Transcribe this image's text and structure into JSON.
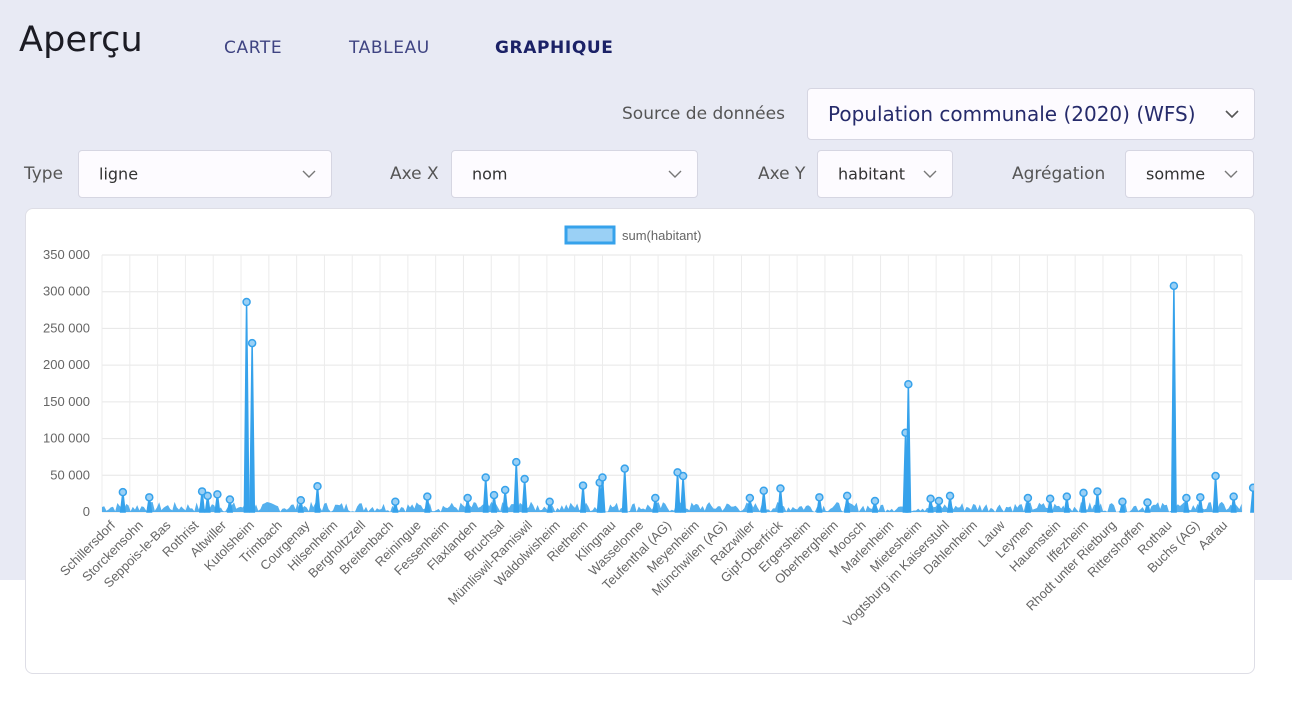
{
  "page": {
    "title": "Aperçu"
  },
  "tabs": [
    {
      "label": "CARTE",
      "active": false
    },
    {
      "label": "TABLEAU",
      "active": false
    },
    {
      "label": "GRAPHIQUE",
      "active": true
    }
  ],
  "controls": {
    "source": {
      "label": "Source de données",
      "value": "Population communale (2020) (WFS)"
    },
    "type": {
      "label": "Type",
      "value": "ligne"
    },
    "x_axis": {
      "label": "Axe X",
      "value": "nom"
    },
    "y_axis": {
      "label": "Axe Y",
      "value": "habitant"
    },
    "aggregation": {
      "label": "Agrégation",
      "value": "somme"
    }
  },
  "colors": {
    "series": "#36a2eb",
    "series_fill": "#9ad0f5",
    "accent": "#1b2166"
  },
  "icons": {
    "chevron": "chevron-down-icon"
  },
  "chart_data": {
    "type": "line",
    "legend": "sum(habitant)",
    "legend_position": "top",
    "grid": true,
    "ylim": [
      0,
      350000
    ],
    "y_ticks": [
      0,
      50000,
      100000,
      150000,
      200000,
      250000,
      300000,
      350000
    ],
    "y_tick_labels": [
      "0",
      "50 000",
      "100 000",
      "150 000",
      "200 000",
      "250 000",
      "300 000",
      "350 000"
    ],
    "x_tick_labels": [
      "Schillersdorf",
      "Storckensohn",
      "Seppois-le-Bas",
      "Rothrist",
      "Altwiller",
      "Kutolsheim",
      "Trimbach",
      "Courgenay",
      "Hilsenheim",
      "Bergholtzzell",
      "Breitenbach",
      "Reiningue",
      "Fessenheim",
      "Flaxlanden",
      "Bruchsal",
      "Mümliswil-Ramiswil",
      "Waldolwisheim",
      "Rietheim",
      "Klingnau",
      "Wasselonne",
      "Teufenthal (AG)",
      "Meyenheim",
      "Münchwilen (AG)",
      "Ratzwiller",
      "Gipf-Oberfrick",
      "Ergersheim",
      "Oberhergheim",
      "Moosch",
      "Marlenheim",
      "Mietesheim",
      "Vogtsburg im Kaiserstuhl",
      "Dahlenheim",
      "Lauw",
      "Leymen",
      "Hauenstein",
      "Iffezheim",
      "Rhodt unter Rietburg",
      "Rittershoffen",
      "Rothau",
      "Buchs (AG)",
      "Aarau"
    ],
    "peaks": [
      {
        "x": 0.25,
        "y": 27000
      },
      {
        "x": 1.2,
        "y": 20000
      },
      {
        "x": 3.1,
        "y": 28000
      },
      {
        "x": 3.3,
        "y": 22000
      },
      {
        "x": 3.65,
        "y": 24000
      },
      {
        "x": 4.1,
        "y": 17000
      },
      {
        "x": 4.7,
        "y": 286000
      },
      {
        "x": 4.9,
        "y": 230000
      },
      {
        "x": 6.65,
        "y": 16000
      },
      {
        "x": 7.25,
        "y": 35000
      },
      {
        "x": 10.05,
        "y": 14000
      },
      {
        "x": 11.2,
        "y": 21000
      },
      {
        "x": 12.65,
        "y": 19000
      },
      {
        "x": 13.3,
        "y": 47000
      },
      {
        "x": 13.6,
        "y": 23000
      },
      {
        "x": 14.0,
        "y": 30000
      },
      {
        "x": 14.4,
        "y": 68000
      },
      {
        "x": 14.7,
        "y": 45000
      },
      {
        "x": 15.6,
        "y": 14000
      },
      {
        "x": 16.8,
        "y": 36000
      },
      {
        "x": 17.4,
        "y": 40000
      },
      {
        "x": 17.5,
        "y": 47000
      },
      {
        "x": 18.3,
        "y": 59000
      },
      {
        "x": 19.4,
        "y": 19000
      },
      {
        "x": 20.2,
        "y": 54000
      },
      {
        "x": 20.4,
        "y": 49000
      },
      {
        "x": 22.8,
        "y": 19000
      },
      {
        "x": 23.3,
        "y": 29000
      },
      {
        "x": 23.9,
        "y": 32000
      },
      {
        "x": 25.3,
        "y": 20000
      },
      {
        "x": 26.3,
        "y": 22000
      },
      {
        "x": 27.3,
        "y": 15000
      },
      {
        "x": 28.4,
        "y": 108000
      },
      {
        "x": 28.5,
        "y": 174000
      },
      {
        "x": 29.3,
        "y": 18000
      },
      {
        "x": 29.6,
        "y": 15000
      },
      {
        "x": 30.0,
        "y": 22000
      },
      {
        "x": 32.8,
        "y": 19000
      },
      {
        "x": 33.6,
        "y": 18000
      },
      {
        "x": 34.2,
        "y": 21000
      },
      {
        "x": 34.8,
        "y": 26000
      },
      {
        "x": 35.3,
        "y": 28000
      },
      {
        "x": 36.2,
        "y": 14000
      },
      {
        "x": 37.1,
        "y": 13000
      },
      {
        "x": 38.05,
        "y": 308000
      },
      {
        "x": 38.5,
        "y": 19000
      },
      {
        "x": 39.0,
        "y": 20000
      },
      {
        "x": 39.55,
        "y": 49000
      },
      {
        "x": 40.2,
        "y": 21000
      },
      {
        "x": 40.9,
        "y": 33000
      }
    ]
  }
}
